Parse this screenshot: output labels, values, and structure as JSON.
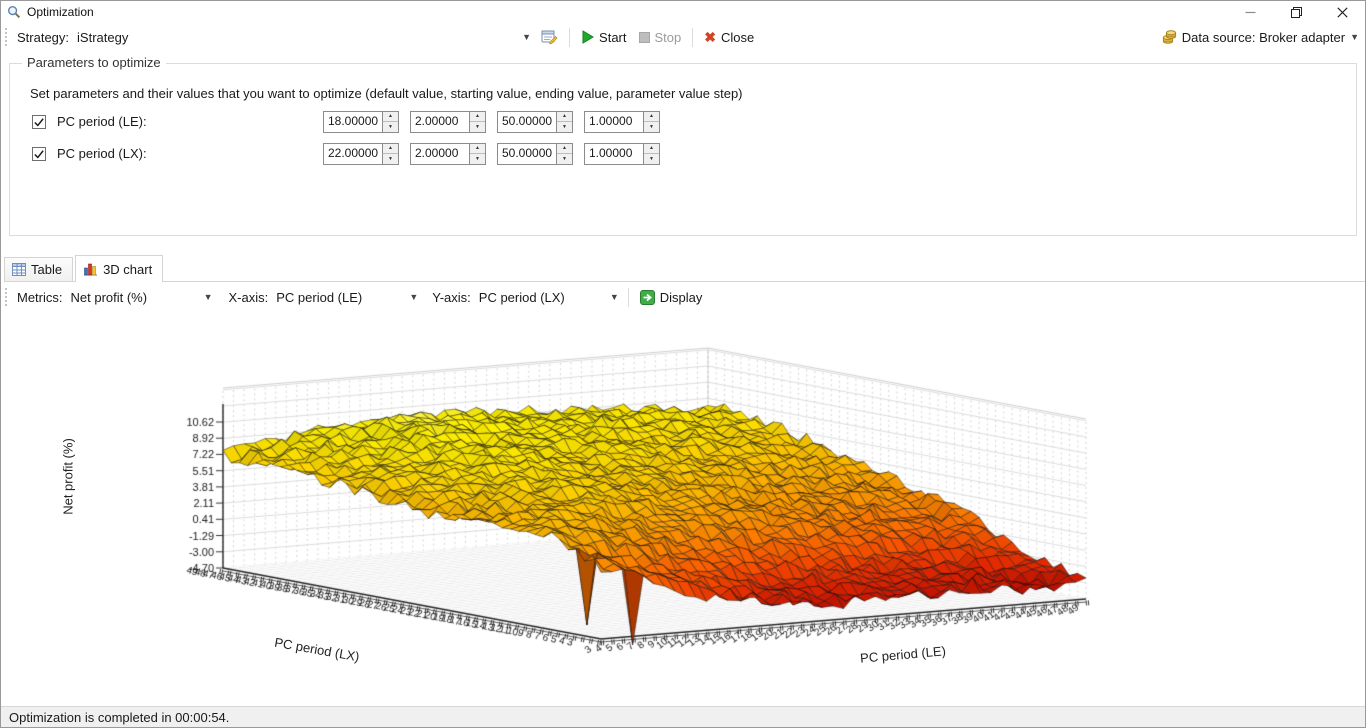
{
  "window": {
    "title": "Optimization"
  },
  "icons": {
    "app": "magnifier",
    "strategy_properties": "form-with-pencil",
    "start": "green-play-triangle",
    "stop": "gray-stop-square",
    "close": "red-x",
    "data_source": "yellow-database",
    "tab_table": "table-grid",
    "tab_chart": "3d-bar-chart",
    "display": "green-arrow-right"
  },
  "colors": {
    "start_green": "#1faa2e",
    "close_red": "#cf4526",
    "datasource_yellow": "#f2c14b",
    "disabled_gray": "#9b9b9b"
  },
  "toolbar": {
    "strategy_label": "Strategy:",
    "strategy_value": "iStrategy",
    "start_label": "Start",
    "stop_label": "Stop",
    "close_label": "Close",
    "data_source_label": "Data source: Broker adapter"
  },
  "parameters": {
    "group_title": "Parameters to optimize",
    "instruction": "Set parameters and their values that you want to optimize (default value, starting value, ending value, parameter value step)",
    "rows": [
      {
        "label": "PC period (LE):",
        "checked": true,
        "values": [
          "18.00000",
          "2.00000",
          "50.00000",
          "1.00000"
        ]
      },
      {
        "label": "PC period (LX):",
        "checked": true,
        "values": [
          "22.00000",
          "2.00000",
          "50.00000",
          "1.00000"
        ]
      }
    ]
  },
  "tabs": [
    {
      "label": "Table",
      "active": false
    },
    {
      "label": "3D chart",
      "active": true
    }
  ],
  "chart_toolbar": {
    "metrics_label": "Metrics:",
    "metrics_value": "Net profit (%)",
    "xaxis_label": "X-axis:",
    "xaxis_value": "PC period (LE)",
    "yaxis_label": "Y-axis:",
    "yaxis_value": "PC period (LX)",
    "display_label": "Display"
  },
  "chart_data": {
    "type": "heatmap",
    "render": "3d-surface",
    "title": "",
    "xlabel": "PC period (LE)",
    "ylabel": "PC period (LX)",
    "zlabel": "Net profit (%)",
    "x_range": {
      "min": 3,
      "max": 49,
      "step": 1
    },
    "y_range": {
      "min": 3,
      "max": 49,
      "step": 1
    },
    "zlim": [
      -4.7,
      10.62
    ],
    "z_ticks": [
      "10.62",
      "8.92",
      "7.22",
      "5.51",
      "3.81",
      "2.11",
      "0.41",
      "-1.29",
      "-3.00",
      "-4.70"
    ],
    "x_ticks": [
      3,
      4,
      5,
      6,
      7,
      8,
      9,
      10,
      11,
      12,
      13,
      14,
      15,
      16,
      17,
      18,
      19,
      20,
      21,
      22,
      23,
      24,
      25,
      26,
      27,
      28,
      29,
      30,
      31,
      32,
      33,
      34,
      35,
      36,
      37,
      38,
      39,
      40,
      41,
      42,
      43,
      44,
      45,
      46,
      47,
      48,
      49
    ],
    "y_ticks": [
      3,
      4,
      5,
      6,
      7,
      8,
      9,
      10,
      11,
      12,
      13,
      14,
      15,
      16,
      17,
      18,
      19,
      20,
      21,
      22,
      23,
      24,
      25,
      26,
      27,
      28,
      29,
      30,
      31,
      32,
      33,
      34,
      35,
      36,
      37,
      38,
      39,
      40,
      41,
      42,
      43,
      44,
      45,
      46,
      47,
      48,
      49
    ],
    "surface_estimate": {
      "note": "approximate Net profit (%) read from the rendered surface; rows = PC period (LX) ascending, cols = PC period (LE) ascending",
      "le_samples": [
        3,
        7,
        11,
        15,
        19,
        23,
        27,
        31,
        35,
        39,
        43,
        46,
        49
      ],
      "lx_samples": [
        3,
        7,
        11,
        15,
        19,
        23,
        27,
        31,
        35,
        39,
        43,
        46,
        49
      ],
      "z": [
        [
          3.0,
          1.0,
          -0.5,
          -1.5,
          -2.5,
          -3.0,
          -3.0,
          -2.5,
          -3.0,
          -2.5,
          -3.0,
          -3.5,
          -2.5
        ],
        [
          4.5,
          3.0,
          1.5,
          0.0,
          -1.0,
          -2.0,
          -2.0,
          -2.0,
          -2.5,
          -2.0,
          -2.5,
          -3.0,
          -2.0
        ],
        [
          5.5,
          5.0,
          4.0,
          2.5,
          1.5,
          0.5,
          0.0,
          -0.5,
          -1.0,
          -1.0,
          -1.5,
          -1.0,
          -0.5
        ],
        [
          5.5,
          5.5,
          5.5,
          4.5,
          3.5,
          3.0,
          2.5,
          2.0,
          1.5,
          1.0,
          0.5,
          0.5,
          1.0
        ],
        [
          5.0,
          5.5,
          6.0,
          6.0,
          5.5,
          4.5,
          4.0,
          3.5,
          3.0,
          2.5,
          2.0,
          2.0,
          2.5
        ],
        [
          5.0,
          6.0,
          6.5,
          7.0,
          6.5,
          5.5,
          5.0,
          4.5,
          4.0,
          3.5,
          3.5,
          3.0,
          3.5
        ],
        [
          5.5,
          6.5,
          7.0,
          7.5,
          7.0,
          6.5,
          6.0,
          5.5,
          5.0,
          4.5,
          4.5,
          4.0,
          4.5
        ],
        [
          6.0,
          7.0,
          7.5,
          8.0,
          8.0,
          7.5,
          7.0,
          6.5,
          6.0,
          5.5,
          5.5,
          5.0,
          5.5
        ],
        [
          6.5,
          7.5,
          8.0,
          8.5,
          8.5,
          8.0,
          7.5,
          7.5,
          7.0,
          6.5,
          6.5,
          6.0,
          6.0
        ],
        [
          6.5,
          7.5,
          8.5,
          9.0,
          9.0,
          8.5,
          8.5,
          8.0,
          7.5,
          7.5,
          7.0,
          6.5,
          7.0
        ],
        [
          7.0,
          8.0,
          8.5,
          9.0,
          9.5,
          9.0,
          9.0,
          8.5,
          8.5,
          8.0,
          8.0,
          7.5,
          7.5
        ],
        [
          7.0,
          8.0,
          9.0,
          9.5,
          9.5,
          9.5,
          9.0,
          9.0,
          8.5,
          8.5,
          8.0,
          8.0,
          8.0
        ],
        [
          7.2,
          8.5,
          9.0,
          9.5,
          10.0,
          9.5,
          9.5,
          9.0,
          9.0,
          8.5,
          8.5,
          8.0,
          8.0
        ]
      ],
      "spikes": [
        {
          "le": 6,
          "lx": 3,
          "z": -5.6
        },
        {
          "le": 4,
          "lx": 6,
          "z": -3.8
        }
      ],
      "jitter": 0.7
    },
    "colors": {
      "stops": [
        [
          10.6,
          "#ffffa8"
        ],
        [
          9.4,
          "#fff200"
        ],
        [
          8.0,
          "#ffe600"
        ],
        [
          6.6,
          "#ffd200"
        ],
        [
          5.2,
          "#ffb800"
        ],
        [
          3.8,
          "#ff9e00"
        ],
        [
          2.4,
          "#ff8400"
        ],
        [
          1.0,
          "#ff6600"
        ],
        [
          -0.4,
          "#f84800"
        ],
        [
          -1.8,
          "#e42800"
        ],
        [
          -3.2,
          "#c81000"
        ],
        [
          -4.7,
          "#a00000"
        ],
        [
          -5.6,
          "#300000"
        ]
      ]
    },
    "legend": "none",
    "grid": "walls-and-floor"
  },
  "status_bar": {
    "text": "Optimization is completed in 00:00:54."
  }
}
